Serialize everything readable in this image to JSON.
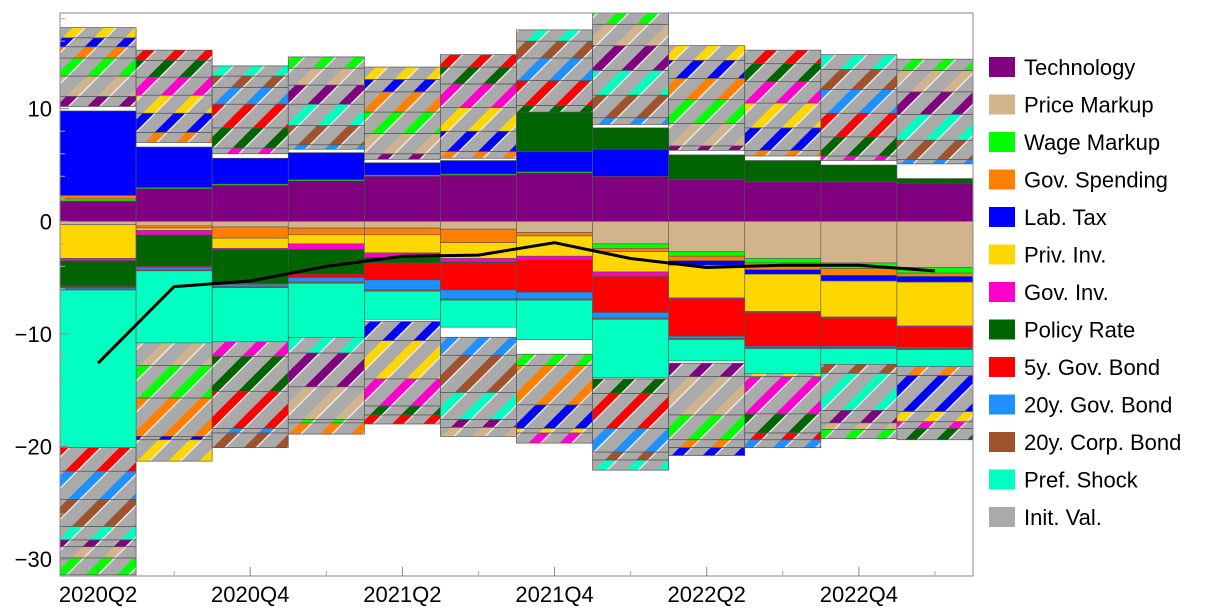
{
  "chart_data": {
    "type": "bar",
    "stacked": true,
    "xlabel": "",
    "ylabel": "",
    "ylim": [
      -31.5,
      18.5
    ],
    "y_ticks": [
      -30,
      -20,
      -10,
      0,
      10
    ],
    "y_tick_labels": [
      "−30",
      "−20",
      "−10",
      "0",
      "10"
    ],
    "x_tick_labels": [
      "2020Q2",
      "2020Q4",
      "2021Q2",
      "2021Q4",
      "2022Q2",
      "2022Q4"
    ],
    "x_tick_positions": [
      0,
      2,
      4,
      6,
      8,
      10
    ],
    "categories": [
      "2020Q2",
      "2020Q3",
      "2020Q4",
      "2021Q1",
      "2021Q2",
      "2021Q3",
      "2021Q4",
      "2022Q1",
      "2022Q2",
      "2022Q3",
      "2022Q4",
      "2023Q1"
    ],
    "grid": false,
    "legend_position": "right",
    "series": [
      {
        "name": "Technology",
        "color": "#800080",
        "values": [
          1.8,
          2.9,
          3.2,
          3.6,
          4.0,
          4.1,
          4.3,
          4.0,
          3.7,
          3.5,
          3.5,
          3.4
        ]
      },
      {
        "name": "Price Markup",
        "color": "#d2b48c",
        "values": [
          -0.3,
          -0.4,
          -0.5,
          -0.6,
          -0.6,
          -0.7,
          -1.0,
          -2.0,
          -2.7,
          -3.3,
          -3.7,
          -4.1
        ]
      },
      {
        "name": "Wage Markup",
        "color": "#00ff00",
        "values": [
          0.2,
          0.1,
          0.1,
          0.1,
          0.1,
          0.1,
          0.1,
          -0.4,
          -0.4,
          -0.4,
          -0.5,
          -0.5
        ]
      },
      {
        "name": "Gov. Spending",
        "color": "#ff8000",
        "values": [
          0.3,
          -0.2,
          -1.0,
          -0.6,
          -0.6,
          -1.2,
          -0.3,
          -0.3,
          -0.4,
          -0.6,
          -0.6,
          -0.3
        ]
      },
      {
        "name": "Lab. Tax",
        "color": "#0000ff",
        "values": [
          7.5,
          3.6,
          2.3,
          2.4,
          1.1,
          1.2,
          1.8,
          2.4,
          -0.4,
          -0.4,
          -0.5,
          -0.5
        ]
      },
      {
        "name": "Priv. Inv.",
        "color": "#ffd700",
        "values": [
          -3.0,
          -0.2,
          -0.9,
          -0.8,
          -1.6,
          -1.4,
          -1.8,
          -1.8,
          -2.9,
          -3.3,
          -3.2,
          -3.9
        ]
      },
      {
        "name": "Gov. Inv.",
        "color": "#ff00cc",
        "values": [
          -0.2,
          -0.4,
          -0.1,
          -0.5,
          -0.4,
          -0.3,
          -0.3,
          -0.4,
          -0.1,
          -0.1,
          -0.1,
          -0.1
        ]
      },
      {
        "name": "Policy Rate",
        "color": "#006400",
        "values": [
          -2.3,
          -2.8,
          -3.0,
          -2.2,
          -0.5,
          -0.1,
          3.5,
          1.9,
          2.2,
          1.9,
          1.5,
          0.4
        ]
      },
      {
        "name": "5y. Gov. Bond",
        "color": "#ff0000",
        "values": [
          -0.1,
          -0.1,
          -0.1,
          -0.3,
          -1.5,
          -2.4,
          -2.9,
          -3.2,
          -3.3,
          -3.0,
          -2.5,
          -1.8
        ]
      },
      {
        "name": "20y. Gov. Bond",
        "color": "#1e90ff",
        "values": [
          -0.1,
          -0.2,
          -0.2,
          -0.4,
          -0.9,
          -0.8,
          -0.6,
          -0.5,
          -0.2,
          -0.1,
          -0.1,
          -0.1
        ]
      },
      {
        "name": "20y. Corp. Bond",
        "color": "#a0522d",
        "values": [
          -0.1,
          -0.1,
          -0.1,
          -0.1,
          -0.1,
          -0.1,
          -0.1,
          -0.1,
          -0.1,
          -0.1,
          -0.1,
          -0.1
        ]
      },
      {
        "name": "Pref. Shock",
        "color": "#00ffc0",
        "values": [
          -14.0,
          -6.4,
          -4.8,
          -4.8,
          -2.5,
          -2.4,
          -3.5,
          -5.2,
          -1.9,
          -2.2,
          -1.4,
          -1.5
        ]
      },
      {
        "name": "Init. Val.",
        "color": "#aaaaaa",
        "values": [
          0,
          0,
          0,
          0,
          0,
          0,
          0,
          0,
          0,
          0,
          0,
          0
        ]
      }
    ],
    "hatched_bands": [
      {
        "pos": [
          [
            10.2,
            0.9
          ],
          [
            0.9,
            1.8
          ],
          [
            1.8,
            1.6
          ],
          [
            1.6,
            1.0
          ],
          [
            1.0,
            0.8
          ],
          [
            0.8,
            0.9
          ]
        ],
        "neg": [
          [
            -20.1,
            2.1
          ],
          [
            2.1,
            2.5
          ],
          [
            2.5,
            2.4
          ],
          [
            2.4,
            1.2
          ],
          [
            1.2,
            0.6
          ],
          [
            0.6,
            1.0
          ],
          [
            1.0,
            1.5
          ]
        ]
      },
      {
        "pos": [
          [
            7.0,
            0.9
          ],
          [
            0.9,
            1.7
          ],
          [
            1.7,
            1.6
          ],
          [
            1.6,
            1.6
          ],
          [
            1.6,
            1.5
          ],
          [
            1.5,
            0.9
          ]
        ],
        "neg": [
          [
            -10.7,
            2.1
          ],
          [
            2.1,
            2.9
          ],
          [
            2.9,
            3.4
          ],
          [
            3.4,
            0.3
          ],
          [
            0.3,
            1.9
          ]
        ]
      },
      {
        "pos": [
          [
            6.0,
            0.5
          ],
          [
            0.5,
            1.8
          ],
          [
            1.8,
            2.1
          ],
          [
            2.1,
            1.5
          ],
          [
            1.5,
            1.0
          ],
          [
            1.0,
            0.9
          ]
        ],
        "neg": [
          [
            -10.0,
            2.0
          ],
          [
            2.0,
            3.1
          ],
          [
            3.1,
            3.3
          ],
          [
            3.3,
            0.4
          ],
          [
            0.4,
            1.3
          ]
        ]
      },
      {
        "pos": [
          [
            6.4,
            0.4
          ],
          [
            0.4,
            1.7
          ],
          [
            1.7,
            1.9
          ],
          [
            1.9,
            1.7
          ],
          [
            1.7,
            1.5
          ],
          [
            1.5,
            1.0
          ]
        ],
        "neg": [
          [
            -9.9,
            1.8
          ],
          [
            1.8,
            3.0
          ],
          [
            3.0,
            2.9
          ],
          [
            2.9,
            0.3
          ],
          [
            0.3,
            1.0
          ]
        ]
      },
      {
        "pos": [
          [
            5.5,
            0.5
          ],
          [
            0.5,
            1.8
          ],
          [
            1.8,
            1.9
          ],
          [
            1.9,
            1.8
          ],
          [
            1.8,
            1.1
          ],
          [
            1.1,
            1.1
          ]
        ],
        "neg": [
          [
            -8.9,
            1.7
          ],
          [
            1.7,
            3.4
          ],
          [
            3.4,
            2.4
          ],
          [
            2.4,
            0.8
          ],
          [
            0.8,
            0.8
          ]
        ]
      },
      {
        "pos": [
          [
            5.6,
            0.6
          ],
          [
            0.6,
            1.8
          ],
          [
            1.8,
            2.1
          ],
          [
            2.1,
            2.1
          ],
          [
            2.1,
            1.5
          ],
          [
            1.5,
            1.1
          ]
        ],
        "neg": [
          [
            -10.3,
            1.6
          ],
          [
            1.6,
            3.3
          ],
          [
            3.3,
            2.4
          ],
          [
            2.4,
            0.7
          ],
          [
            0.7,
            0.8
          ]
        ]
      },
      {
        "pos": [
          [
            7.7,
            0.6
          ],
          [
            0.6,
            2.0
          ],
          [
            2.0,
            2.2
          ],
          [
            2.2,
            2.0
          ],
          [
            2.0,
            1.5
          ],
          [
            1.5,
            1.0
          ]
        ],
        "neg": [
          [
            -11.8,
            1.0
          ],
          [
            1.0,
            3.5
          ],
          [
            3.5,
            2.1
          ],
          [
            2.1,
            0.4
          ],
          [
            0.4,
            0.9
          ]
        ]
      },
      {
        "pos": [
          [
            8.6,
            0.6
          ],
          [
            0.6,
            2.0
          ],
          [
            2.0,
            2.2
          ],
          [
            2.2,
            2.2
          ],
          [
            2.2,
            1.9
          ],
          [
            1.9,
            1.3
          ]
        ],
        "neg": [
          [
            -14.0,
            1.3
          ],
          [
            1.3,
            3.1
          ],
          [
            3.1,
            2.1
          ],
          [
            2.1,
            0.7
          ],
          [
            0.7,
            0.9
          ]
        ]
      },
      {
        "pos": [
          [
            6.3,
            0.4
          ],
          [
            0.4,
            2.0
          ],
          [
            2.0,
            2.1
          ],
          [
            2.1,
            1.9
          ],
          [
            1.9,
            1.6
          ],
          [
            1.6,
            1.3
          ]
        ],
        "neg": [
          [
            -12.6,
            1.2
          ],
          [
            1.2,
            3.4
          ],
          [
            3.4,
            2.2
          ],
          [
            2.2,
            0.7
          ],
          [
            0.7,
            0.7
          ]
        ]
      },
      {
        "pos": [
          [
            5.8,
            0.5
          ],
          [
            0.5,
            2.0
          ],
          [
            2.0,
            2.2
          ],
          [
            2.2,
            1.9
          ],
          [
            1.9,
            1.6
          ],
          [
            1.6,
            1.2
          ]
        ],
        "neg": [
          [
            -12.5,
            1.3
          ],
          [
            1.3,
            3.3
          ],
          [
            3.3,
            1.7
          ],
          [
            1.7,
            0.6
          ],
          [
            0.6,
            0.7
          ]
        ]
      },
      {
        "pos": [
          [
            5.4,
            0.4
          ],
          [
            0.4,
            1.7
          ],
          [
            1.7,
            2.1
          ],
          [
            2.1,
            2.1
          ],
          [
            2.1,
            1.8
          ],
          [
            1.8,
            1.3
          ]
        ],
        "neg": [
          [
            -12.3,
            1.2
          ],
          [
            1.2,
            3.3
          ],
          [
            3.3,
            1.1
          ],
          [
            1.1,
            0.6
          ],
          [
            0.6,
            0.8
          ]
        ]
      },
      {
        "pos": [
          [
            5.1,
            0.4
          ],
          [
            0.4,
            1.7
          ],
          [
            1.7,
            2.3
          ],
          [
            2.3,
            2.0
          ],
          [
            2.0,
            1.9
          ],
          [
            1.9,
            1.0
          ]
        ],
        "neg": [
          [
            -12.9,
            0.8
          ],
          [
            0.8,
            3.2
          ],
          [
            3.2,
            0.9
          ],
          [
            0.9,
            0.6
          ],
          [
            0.6,
            1.0
          ]
        ]
      }
    ],
    "line": {
      "name": "",
      "color": "#000000",
      "values": [
        -12.6,
        -5.8,
        -5.3,
        -4.0,
        -3.1,
        -3.0,
        -1.9,
        -3.3,
        -4.1,
        -3.9,
        -3.9,
        -4.4
      ]
    }
  }
}
